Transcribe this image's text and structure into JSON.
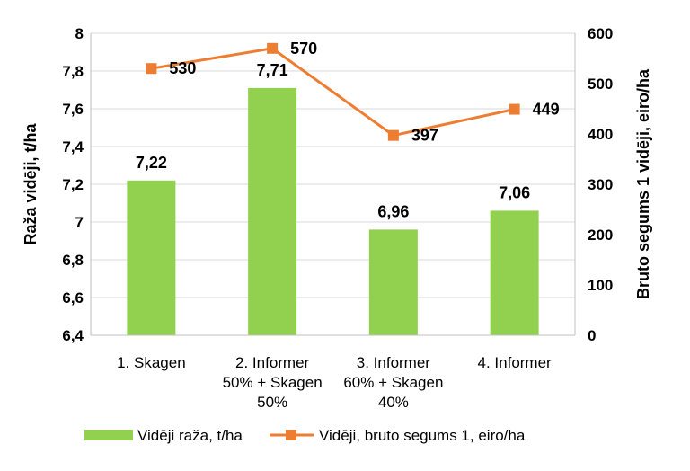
{
  "chart_data": {
    "type": "bar",
    "categories": [
      [
        "1. Skagen"
      ],
      [
        "2. Informer",
        "50% + Skagen",
        "50%"
      ],
      [
        "3.  Informer",
        "60% + Skagen",
        "40%"
      ],
      [
        "4. Informer"
      ]
    ],
    "series": [
      {
        "name": "Vidēji raža, t/ha",
        "type": "bar",
        "axis": "left",
        "color": "#92D050",
        "values": [
          7.22,
          7.71,
          6.96,
          7.06
        ],
        "labels": [
          "7,22",
          "7,71",
          "6,96",
          "7,06"
        ]
      },
      {
        "name": "Vidēji, bruto segums 1, eiro/ha",
        "type": "line",
        "axis": "right",
        "color": "#ED7D31",
        "marker": "square",
        "values": [
          530,
          570,
          397,
          449
        ],
        "labels": [
          "530",
          "570",
          "397",
          "449"
        ]
      }
    ],
    "ylabel": "Raža vidēji, t/ha",
    "ylim": [
      6.4,
      8
    ],
    "yticks": [
      "6,4",
      "6,6",
      "6,8",
      "7",
      "7,2",
      "7,4",
      "7,6",
      "7,8",
      "8"
    ],
    "y2label": "Bruto segums 1 vidēji, eiro/ha",
    "y2lim": [
      0,
      600
    ],
    "y2ticks": [
      "0",
      "100",
      "200",
      "300",
      "400",
      "500",
      "600"
    ],
    "grid": "horizontal",
    "legend": "bottom"
  }
}
